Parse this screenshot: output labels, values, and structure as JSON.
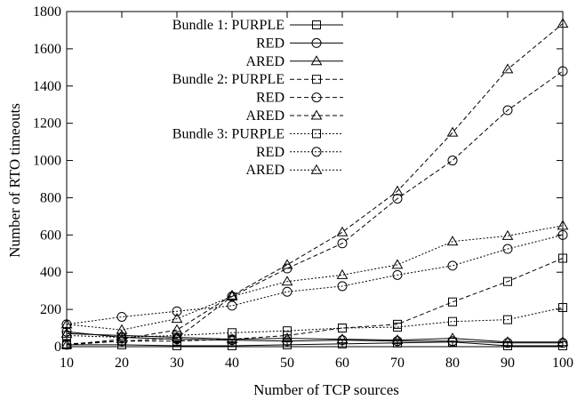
{
  "chart_data": {
    "type": "line",
    "title": "",
    "xlabel": "Number of TCP sources",
    "ylabel": "Number of RTO timeouts",
    "x": [
      10,
      20,
      30,
      40,
      50,
      60,
      70,
      80,
      90,
      100
    ],
    "xlim": [
      10,
      100
    ],
    "ylim": [
      0,
      1800
    ],
    "xticks": [
      "10",
      "20",
      "30",
      "40",
      "50",
      "60",
      "70",
      "80",
      "90",
      "100"
    ],
    "yticks": [
      "0",
      "200",
      "400",
      "600",
      "800",
      "1000",
      "1200",
      "1400",
      "1600",
      "1800"
    ],
    "grid": false,
    "legend_position": "top-left",
    "series": [
      {
        "name": "Bundle 1: PURPLE",
        "label": "Bundle 1: PURPLE",
        "marker": "square",
        "dash": "solid",
        "values": [
          10,
          10,
          5,
          5,
          10,
          15,
          20,
          25,
          5,
          5
        ]
      },
      {
        "name": "Bundle 1: RED",
        "label": "RED",
        "marker": "circle",
        "dash": "solid",
        "values": [
          80,
          50,
          40,
          35,
          30,
          35,
          30,
          30,
          20,
          20
        ]
      },
      {
        "name": "Bundle 1: ARED",
        "label": "ARED",
        "marker": "triangle",
        "dash": "solid",
        "values": [
          70,
          60,
          50,
          40,
          45,
          40,
          35,
          45,
          25,
          25
        ]
      },
      {
        "name": "Bundle 2: PURPLE",
        "label": "Bundle 2: PURPLE",
        "marker": "square",
        "dash": "dashed",
        "values": [
          15,
          30,
          30,
          40,
          60,
          100,
          120,
          240,
          350,
          475
        ]
      },
      {
        "name": "Bundle 2: RED",
        "label": "RED",
        "marker": "circle",
        "dash": "dashed",
        "values": [
          10,
          30,
          45,
          270,
          420,
          555,
          795,
          1000,
          1270,
          1480
        ]
      },
      {
        "name": "Bundle 2: ARED",
        "label": "ARED",
        "marker": "triangle",
        "dash": "dashed",
        "values": [
          10,
          40,
          90,
          275,
          440,
          615,
          835,
          1150,
          1490,
          1735
        ]
      },
      {
        "name": "Bundle 3: PURPLE",
        "label": "Bundle 3: PURPLE",
        "marker": "square",
        "dash": "dotted",
        "values": [
          60,
          50,
          60,
          75,
          85,
          100,
          105,
          135,
          145,
          210
        ]
      },
      {
        "name": "Bundle 3: RED",
        "label": "RED",
        "marker": "circle",
        "dash": "dotted",
        "values": [
          120,
          160,
          190,
          220,
          295,
          325,
          385,
          435,
          525,
          600
        ]
      },
      {
        "name": "Bundle 3: ARED",
        "label": "ARED",
        "marker": "triangle",
        "dash": "dotted",
        "values": [
          120,
          90,
          150,
          270,
          350,
          385,
          440,
          565,
          595,
          650
        ]
      }
    ]
  }
}
